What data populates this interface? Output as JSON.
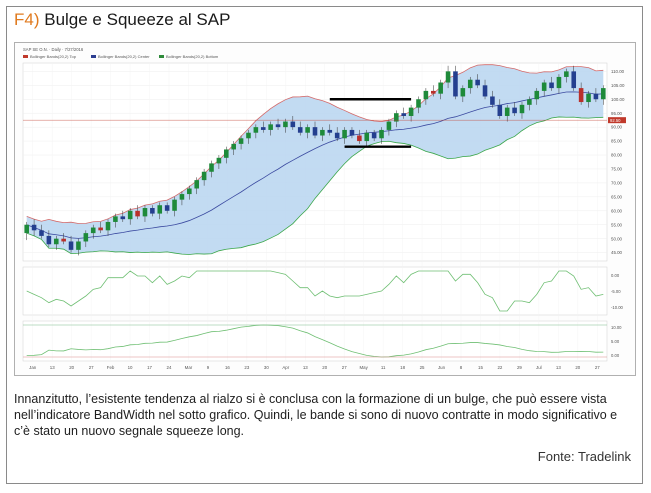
{
  "figure": {
    "number": "F4)",
    "title": "Bulge e Squeeze al SAP",
    "caption": "Innanzitutto, l’esistente tendenza al rialzo si è conclusa con la formazione di un bulge, che può essere vista nell’indicatore BandWidth nel sotto grafico. Quindi, le bande si sono di nuovo contratte in modo significativo e c’è stato un nuovo segnale squeeze long.",
    "source": "Fonte: Tradelink"
  },
  "chart_data": {
    "type": "line",
    "header": "SAP SE O.N. · Daily · 7/27/2016",
    "legend": [
      "Bollinger Bands(20,2) Top",
      "Bollinger Bands(20,2) Center",
      "Bollinger Bands(20,2) Bottom"
    ],
    "price_scale_labels": [
      "110.00",
      "105.00",
      "100.00",
      "95.00",
      "90.00",
      "85.00",
      "80.00",
      "75.00",
      "70.00",
      "65.00",
      "60.00",
      "55.00",
      "50.00",
      "45.00"
    ],
    "price_ylim": [
      42,
      113
    ],
    "last_price_label": "92.50",
    "x_tick_labels": [
      "Jan",
      "13",
      "20",
      "27",
      "Feb",
      "10",
      "17",
      "24",
      "Mar",
      "9",
      "16",
      "23",
      "30",
      "Apr",
      "13",
      "20",
      "27",
      "May",
      "11",
      "18",
      "25",
      "Jun",
      "8",
      "15",
      "22",
      "29",
      "Jul",
      "13",
      "20",
      "27"
    ],
    "panel2_labels": [
      "0.00",
      "-5.00",
      "-10.00"
    ],
    "panel3_labels": [
      "10.00",
      "5.00",
      "0.00"
    ],
    "candles": [
      [
        52,
        55,
        50,
        49.5,
        56
      ],
      [
        55,
        53,
        55.5,
        51,
        57
      ],
      [
        53,
        51,
        54,
        50,
        55
      ],
      [
        51,
        48,
        52,
        47,
        53
      ],
      [
        48,
        50,
        47,
        46,
        51
      ],
      [
        50,
        49,
        51,
        48,
        52
      ],
      [
        49,
        46,
        50,
        45,
        51
      ],
      [
        46,
        49,
        46,
        44,
        50
      ],
      [
        49,
        52,
        48,
        47,
        53
      ],
      [
        52,
        54,
        51,
        50,
        55
      ],
      [
        54,
        53,
        55,
        52,
        56
      ],
      [
        53,
        56,
        52,
        51,
        57
      ],
      [
        56,
        58,
        55,
        54,
        59
      ],
      [
        58,
        57,
        59,
        56,
        60
      ],
      [
        57,
        60,
        56,
        55,
        61
      ],
      [
        60,
        58,
        61,
        57,
        62
      ],
      [
        58,
        61,
        57,
        56,
        62
      ],
      [
        61,
        59,
        60,
        58,
        62
      ],
      [
        59,
        62,
        58,
        57,
        63
      ],
      [
        62,
        60,
        61,
        59,
        63
      ],
      [
        60,
        64,
        59,
        58,
        65
      ],
      [
        64,
        66,
        63,
        62,
        67
      ],
      [
        66,
        68,
        65,
        64,
        69
      ],
      [
        68,
        71,
        67,
        66,
        72
      ],
      [
        71,
        74,
        70,
        69,
        75
      ],
      [
        74,
        77,
        73,
        72,
        78
      ],
      [
        77,
        79,
        76,
        75,
        80
      ],
      [
        79,
        82,
        78,
        77,
        83
      ],
      [
        82,
        84,
        81,
        80,
        85
      ],
      [
        84,
        86,
        83,
        82,
        87
      ],
      [
        86,
        88,
        85,
        84,
        89
      ],
      [
        88,
        90,
        87,
        86,
        91
      ],
      [
        90,
        89,
        91,
        88,
        92
      ],
      [
        89,
        91,
        88,
        87,
        92
      ],
      [
        91,
        90,
        92,
        89,
        93
      ],
      [
        90,
        92,
        89,
        88,
        93
      ],
      [
        92,
        90,
        93,
        89,
        94
      ],
      [
        90,
        88,
        91,
        87,
        92
      ],
      [
        88,
        90,
        87,
        86,
        91
      ],
      [
        90,
        87,
        91,
        86,
        92
      ],
      [
        87,
        89,
        86,
        85,
        90
      ],
      [
        89,
        88,
        90,
        87,
        91
      ],
      [
        88,
        86,
        89,
        85,
        90
      ],
      [
        86,
        89,
        85,
        84,
        90
      ],
      [
        89,
        87,
        88,
        86,
        90
      ],
      [
        87,
        85,
        88,
        84,
        89
      ],
      [
        85,
        88,
        84,
        83,
        89
      ],
      [
        88,
        86,
        87,
        85,
        89
      ],
      [
        86,
        89,
        85,
        84,
        90
      ],
      [
        89,
        92,
        88,
        87,
        93
      ],
      [
        92,
        95,
        91,
        90,
        96
      ],
      [
        95,
        94,
        96,
        93,
        97
      ],
      [
        94,
        97,
        93,
        92,
        98
      ],
      [
        97,
        100,
        96,
        95,
        101
      ],
      [
        100,
        103,
        99,
        98,
        104
      ],
      [
        103,
        102,
        104,
        101,
        105
      ],
      [
        102,
        106,
        101,
        100,
        107
      ],
      [
        106,
        110,
        105,
        104,
        112
      ],
      [
        110,
        101,
        111,
        100,
        112
      ],
      [
        101,
        104,
        100,
        99,
        105
      ],
      [
        104,
        107,
        103,
        102,
        108
      ],
      [
        107,
        105,
        108,
        104,
        109
      ],
      [
        105,
        101,
        106,
        100,
        107
      ],
      [
        101,
        98,
        102,
        97,
        103
      ],
      [
        98,
        94,
        99,
        93,
        100
      ],
      [
        94,
        97,
        93,
        92,
        98
      ],
      [
        97,
        95,
        98,
        94,
        99
      ],
      [
        95,
        98,
        94,
        93,
        99
      ],
      [
        98,
        100,
        97,
        96,
        101
      ],
      [
        100,
        103,
        99,
        98,
        104
      ],
      [
        103,
        106,
        102,
        101,
        107
      ],
      [
        106,
        104,
        107,
        103,
        108
      ],
      [
        104,
        108,
        103,
        102,
        109
      ],
      [
        108,
        110,
        107,
        106,
        111
      ],
      [
        110,
        104,
        111,
        103,
        112
      ],
      [
        104,
        99,
        105,
        98,
        106
      ],
      [
        99,
        102,
        98,
        97,
        103
      ],
      [
        102,
        100,
        103,
        99,
        104
      ],
      [
        100,
        104,
        99,
        98,
        105
      ]
    ]
  }
}
